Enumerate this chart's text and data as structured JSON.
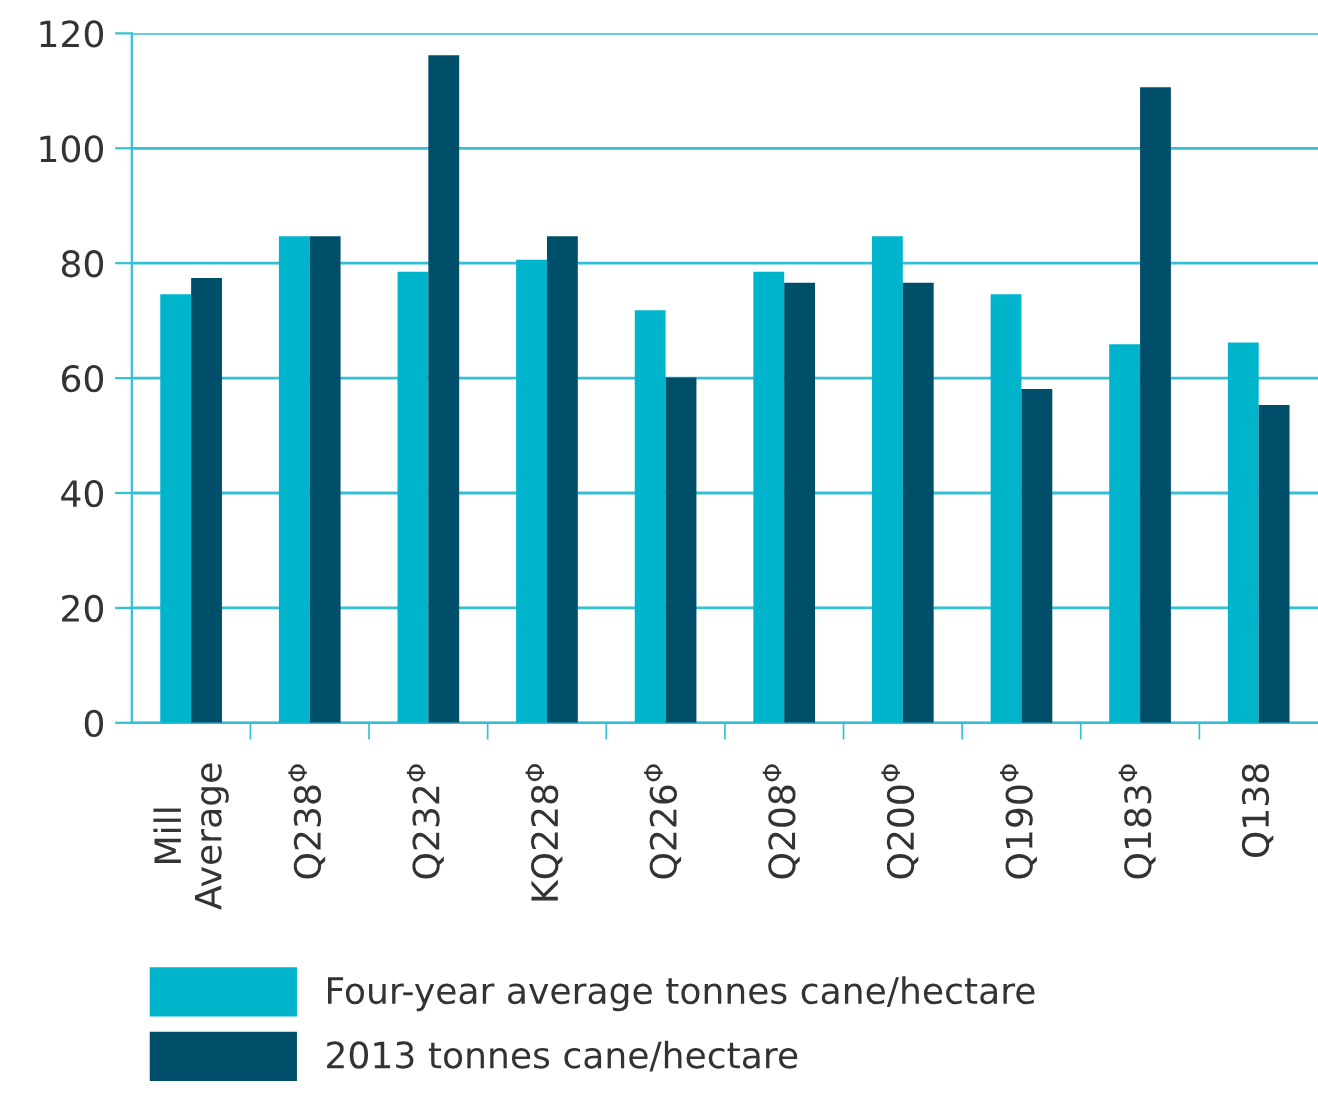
{
  "chart_data": {
    "type": "bar",
    "categories": [
      "Mill\nAverage",
      "Q238$^{Φ}$",
      "Q232$^{Φ}$",
      "KQ228$^{Φ}$",
      "Q226$^{Φ}$",
      "Q208$^{Φ}$",
      "Q200$^{Φ}$",
      "Q190$^{Φ}$",
      "Q183$^{Φ}$",
      "Q138"
    ],
    "series": [
      {
        "name": "Four-year average tonnes cane/hectare",
        "color": "#00b4cc",
        "values": [
          74.6,
          84.7,
          78.5,
          80.6,
          71.8,
          78.5,
          84.7,
          74.6,
          65.9,
          66.2
        ]
      },
      {
        "name": "2013 tonnes cane/hectare",
        "color": "#004f6a",
        "values": [
          77.4,
          84.7,
          116.2,
          84.7,
          60.1,
          76.6,
          76.6,
          58.1,
          110.6,
          55.3
        ]
      }
    ],
    "ylim": [
      0,
      120
    ],
    "yticks": [
      0,
      20,
      40,
      60,
      80,
      100,
      120
    ],
    "grid": "y",
    "legend": "bottom"
  }
}
